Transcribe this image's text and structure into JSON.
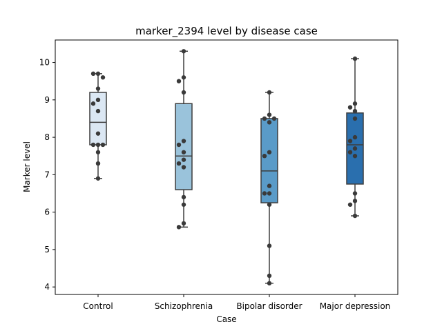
{
  "chart_data": {
    "type": "box",
    "title": "marker_2394 level by disease case",
    "xlabel": "Case",
    "ylabel": "Marker level",
    "ylim": [
      3.8,
      10.6
    ],
    "yticks": [
      4,
      5,
      6,
      7,
      8,
      9,
      10
    ],
    "grid": false,
    "categories": [
      "Control",
      "Schizophrenia",
      "Bipolar disorder",
      "Major depression"
    ],
    "colors": [
      "#dbe7f3",
      "#9ac3db",
      "#5a9bc8",
      "#2a6fae"
    ],
    "boxes": [
      {
        "category": "Control",
        "min": 6.9,
        "q1": 7.8,
        "median": 8.4,
        "q3": 9.2,
        "max": 9.7
      },
      {
        "category": "Schizophrenia",
        "min": 5.6,
        "q1": 6.6,
        "median": 7.5,
        "q3": 8.9,
        "max": 10.3
      },
      {
        "category": "Bipolar disorder",
        "min": 4.1,
        "q1": 6.25,
        "median": 7.1,
        "q3": 8.5,
        "max": 9.2
      },
      {
        "category": "Major depression",
        "min": 5.9,
        "q1": 6.75,
        "median": 7.8,
        "q3": 8.65,
        "max": 10.1
      }
    ],
    "points": [
      [
        9.7,
        9.7,
        9.6,
        9.3,
        9.0,
        8.9,
        8.7,
        8.1,
        7.8,
        7.8,
        7.8,
        7.6,
        7.3,
        6.9
      ],
      [
        10.3,
        9.6,
        9.5,
        9.2,
        7.9,
        7.8,
        7.6,
        7.4,
        7.3,
        7.2,
        6.4,
        6.2,
        5.7,
        5.6
      ],
      [
        9.2,
        8.6,
        8.5,
        8.5,
        8.4,
        7.6,
        7.5,
        6.7,
        6.5,
        6.5,
        6.2,
        5.1,
        4.3,
        4.1
      ],
      [
        10.1,
        8.9,
        8.8,
        8.7,
        8.5,
        8.0,
        7.9,
        7.7,
        7.6,
        7.5,
        6.5,
        6.3,
        6.2,
        5.9
      ]
    ]
  }
}
